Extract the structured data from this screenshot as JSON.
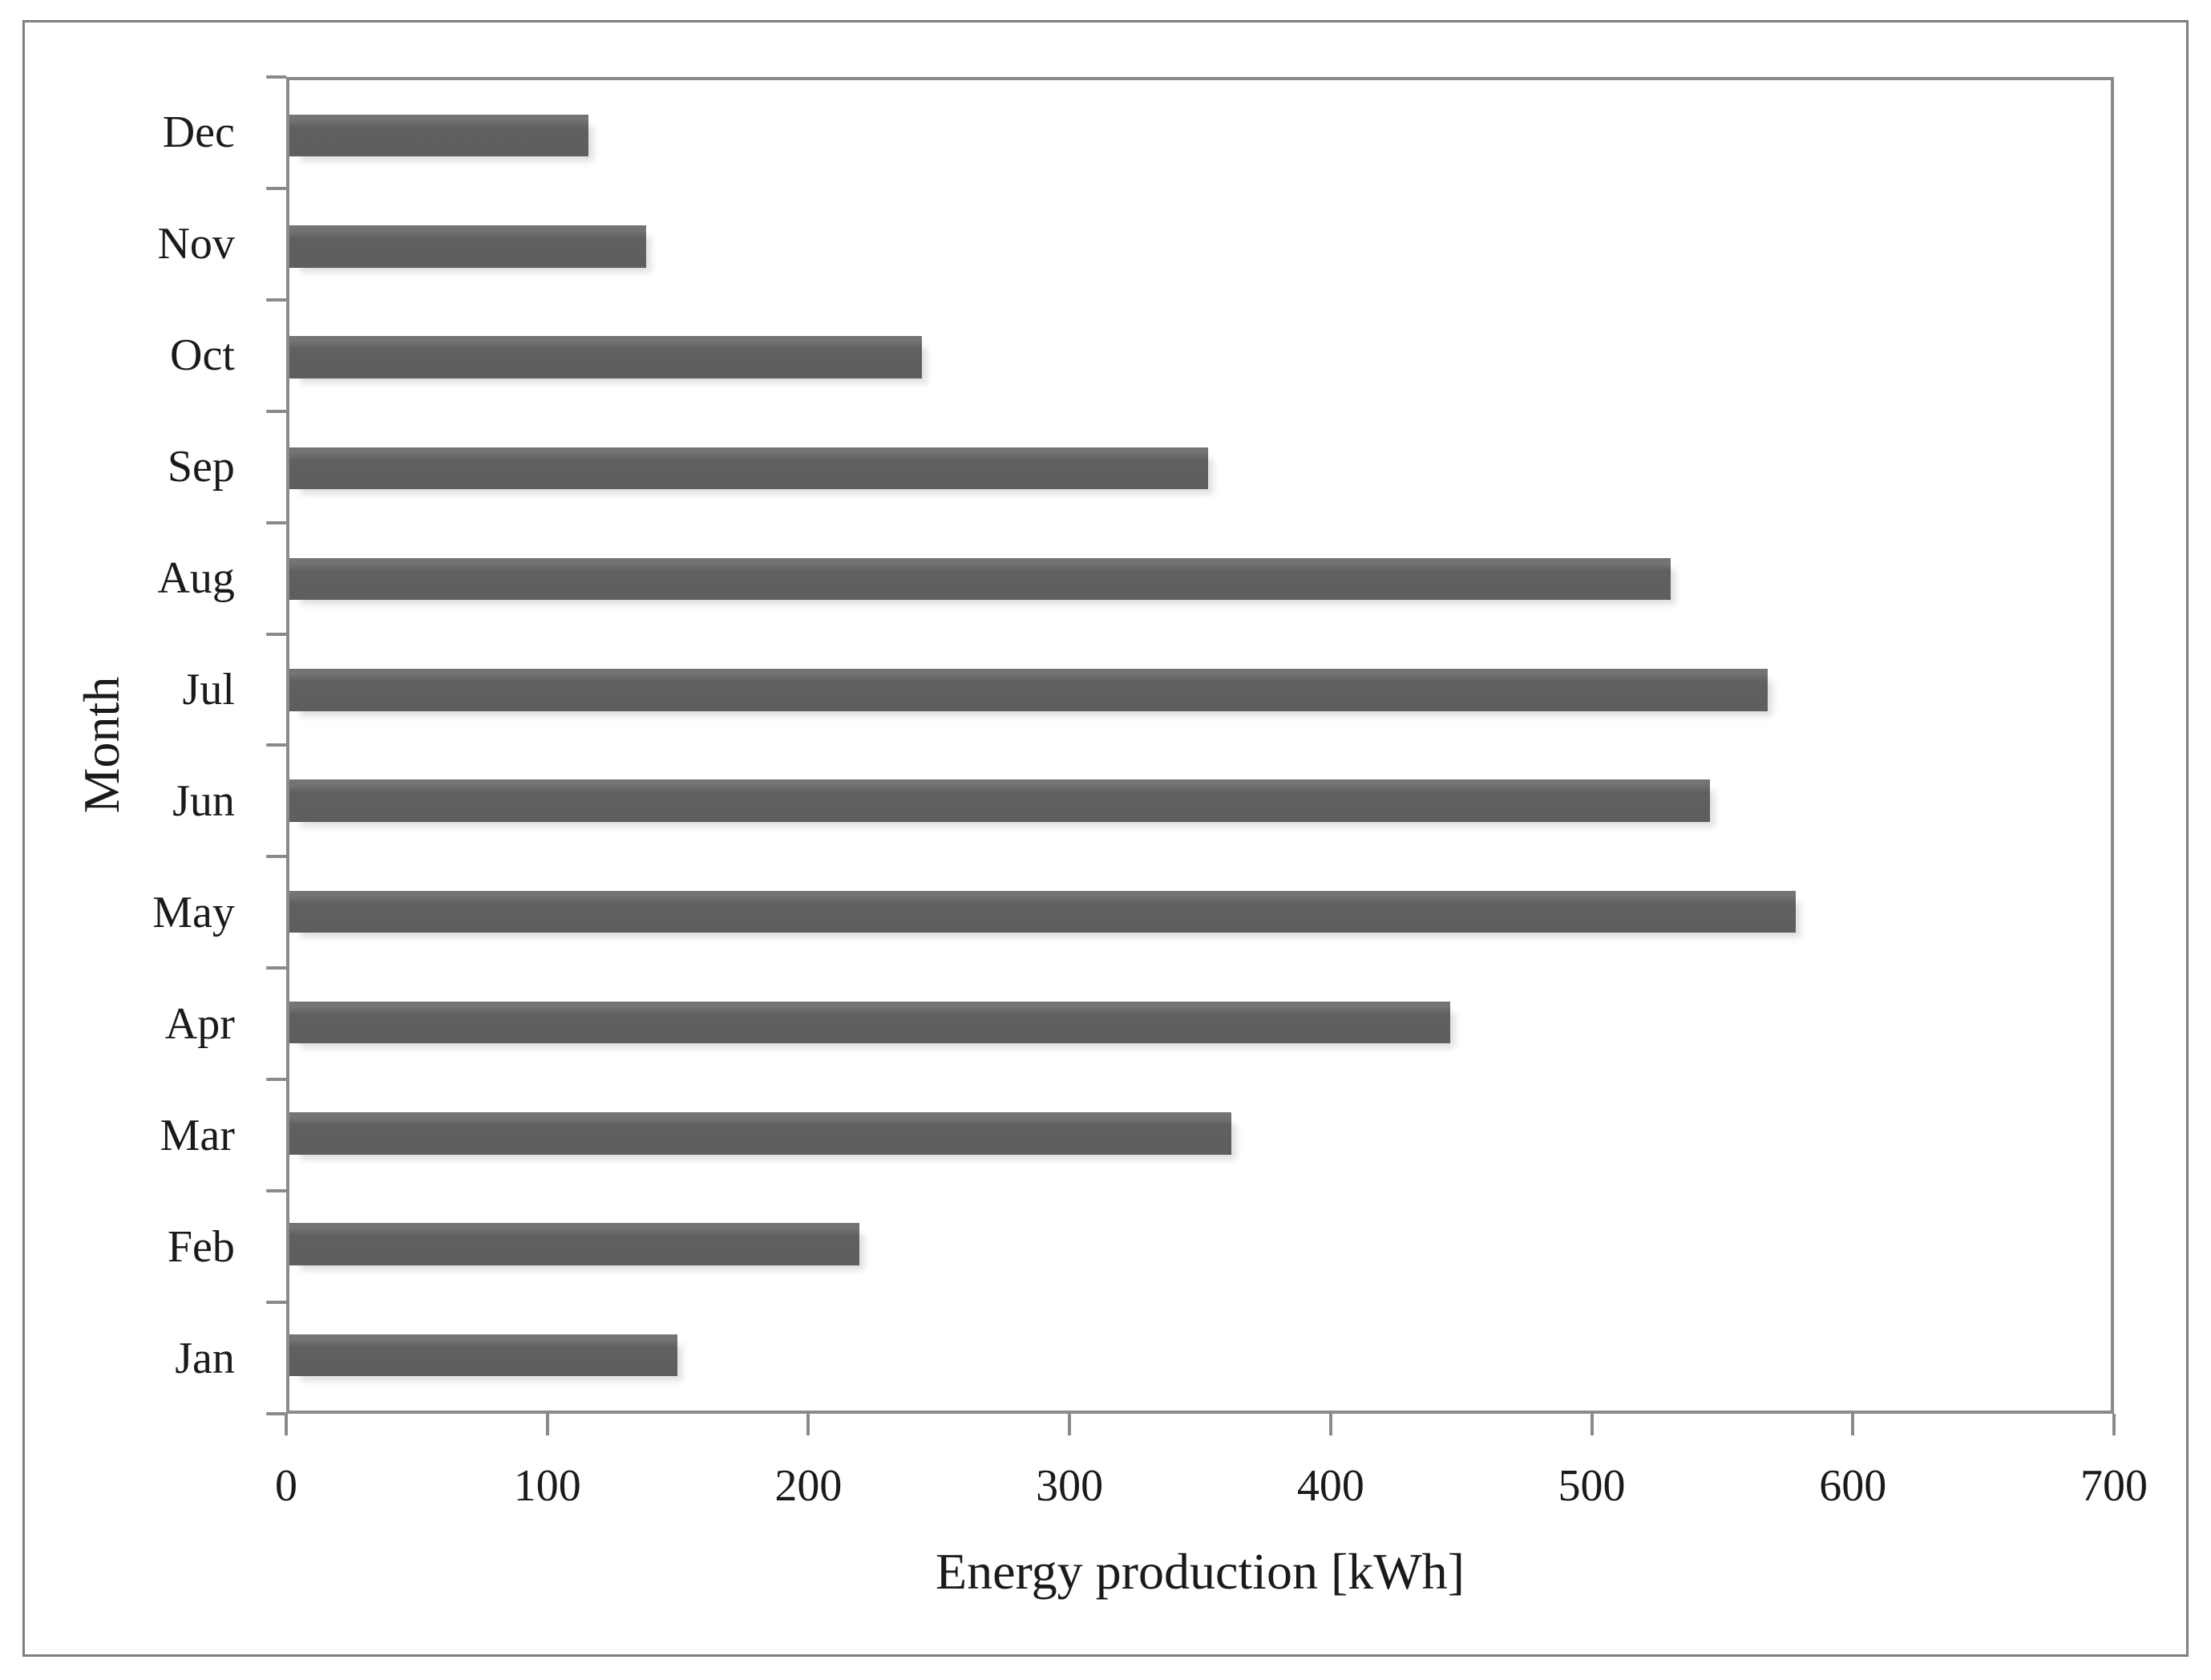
{
  "chart_data": {
    "type": "bar",
    "orientation": "horizontal",
    "title": "",
    "xlabel": "Energy production [kWh]",
    "ylabel": "Month",
    "categories": [
      "Jan",
      "Feb",
      "Mar",
      "Apr",
      "May",
      "Jun",
      "Jul",
      "Aug",
      "Sep",
      "Oct",
      "Nov",
      "Dec"
    ],
    "values": [
      149,
      219,
      362,
      446,
      579,
      546,
      568,
      531,
      353,
      243,
      137,
      115
    ],
    "units": "kWh",
    "xlim": [
      0,
      700
    ],
    "xticks": [
      0,
      100,
      200,
      300,
      400,
      500,
      600,
      700
    ],
    "category_order_top_to_bottom": [
      "Dec",
      "Nov",
      "Oct",
      "Sep",
      "Aug",
      "Jul",
      "Jun",
      "May",
      "Apr",
      "Mar",
      "Feb",
      "Jan"
    ],
    "grid": false,
    "legend": false,
    "bar_gap_ratio": 1.5,
    "bar_color": "#606060",
    "axis_color": "#8a8a8a",
    "frame_color": "#7f7f7f",
    "text_color": "#1a1a1a",
    "background_color": "#ffffff"
  }
}
